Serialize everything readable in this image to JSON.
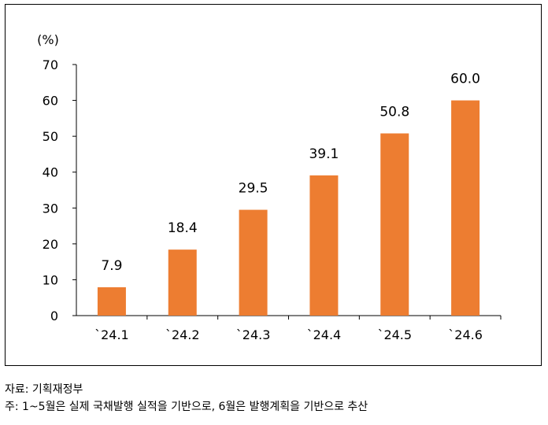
{
  "chart_data": {
    "type": "bar",
    "unit_label": "(%)",
    "categories": [
      "`24.1",
      "`24.2",
      "`24.3",
      "`24.4",
      "`24.5",
      "`24.6"
    ],
    "values": [
      7.9,
      18.4,
      29.5,
      39.1,
      50.8,
      60.0
    ],
    "value_labels": [
      "7.9",
      "18.4",
      "29.5",
      "39.1",
      "50.8",
      "60.0"
    ],
    "ylim": [
      0,
      70
    ],
    "yticks": [
      0,
      10,
      20,
      30,
      40,
      50,
      60,
      70
    ],
    "bar_color": "#ED7D31",
    "grid": false,
    "title": "",
    "xlabel": "",
    "ylabel": ""
  },
  "notes": {
    "source": "자료: 기획재정부",
    "note": "주: 1~5월은 실제 국채발행 실적을 기반으로, 6월은 발행계획을 기반으로 추산"
  }
}
